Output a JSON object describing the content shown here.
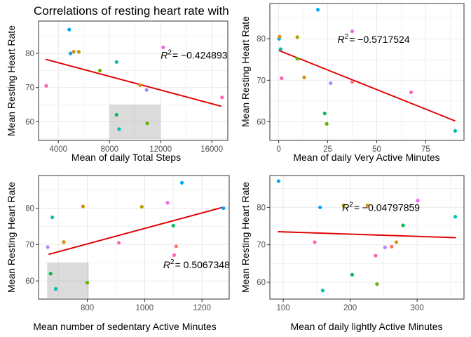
{
  "title": "Correlations of resting heart rate with",
  "colors": {
    "trend": "#e00000",
    "band": "#999999",
    "grid": "#ebebeb",
    "border": "#333333",
    "point_palette": [
      "#F8766D",
      "#DB8E00",
      "#AEA200",
      "#64B200",
      "#00BD5C",
      "#00C1A7",
      "#00BADE",
      "#00A6FF",
      "#B385FF",
      "#EF67EB",
      "#FF63B6"
    ]
  },
  "chart_data": [
    {
      "type": "scatter",
      "title": "Correlations of resting heart rate with",
      "xlabel": "Mean of daily Total Steps",
      "ylabel": "Mean Resting Heart Rate",
      "xlim": [
        2450,
        17250
      ],
      "ylim": [
        54.5,
        89.5
      ],
      "xticks": [
        4000,
        8000,
        12000,
        16000
      ],
      "yticks": [
        60,
        70,
        80
      ],
      "xtick_labels": [
        "4000",
        "8000",
        "12000",
        "16000"
      ],
      "ytick_labels": [
        "60",
        "70",
        "80"
      ],
      "grid": true,
      "annotation": {
        "prefix": "R",
        "exponent": "2",
        "value": "= −0.424893",
        "x": 12000,
        "y": 78.5
      },
      "trend": {
        "x1": 3000,
        "y1": 78.3,
        "x2": 16750,
        "y2": 64.5
      },
      "band": {
        "x1": 8000,
        "x2": 12000,
        "y1": 54.9,
        "y2": 65
      },
      "points": [
        {
          "x": 3050,
          "y": 70.5,
          "color": "#FF63B6"
        },
        {
          "x": 4850,
          "y": 87.0,
          "color": "#00A6FF"
        },
        {
          "x": 4950,
          "y": 80.0,
          "color": "#00A6FF"
        },
        {
          "x": 5200,
          "y": 80.5,
          "color": "#DB8E00"
        },
        {
          "x": 5600,
          "y": 80.5,
          "color": "#AEA200"
        },
        {
          "x": 7250,
          "y": 75.0,
          "color": "#64B200"
        },
        {
          "x": 8550,
          "y": 77.5,
          "color": "#00C1A7"
        },
        {
          "x": 8550,
          "y": 62.0,
          "color": "#00BD5C"
        },
        {
          "x": 8750,
          "y": 57.8,
          "color": "#00C1A7"
        },
        {
          "x": 10400,
          "y": 70.7,
          "color": "#DB8E00"
        },
        {
          "x": 10900,
          "y": 69.3,
          "color": "#B385FF"
        },
        {
          "x": 10950,
          "y": 59.5,
          "color": "#64B200"
        },
        {
          "x": 12200,
          "y": 81.8,
          "color": "#EF67EB"
        },
        {
          "x": 16800,
          "y": 67.1,
          "color": "#FF63B6"
        }
      ]
    },
    {
      "type": "scatter",
      "title": "",
      "xlabel": "Mean of daily Very Active Minutes",
      "ylabel": "Mean Resting Heart Rate",
      "xlim": [
        -4.5,
        94.5
      ],
      "ylim": [
        55.5,
        88.5
      ],
      "xticks": [
        0,
        25,
        50,
        75
      ],
      "yticks": [
        60,
        70,
        80
      ],
      "xtick_labels": [
        "0",
        "25",
        "50",
        "75"
      ],
      "ytick_labels": [
        "60",
        "70",
        "80"
      ],
      "grid": true,
      "annotation": {
        "prefix": "R",
        "exponent": "2",
        "value": "= −0.5717524",
        "x": 30,
        "y": 79
      },
      "trend": {
        "x1": 0,
        "y1": 77.2,
        "x2": 90,
        "y2": 60.2
      },
      "points": [
        {
          "x": 0.2,
          "y": 80.0,
          "color": "#00A6FF"
        },
        {
          "x": 0.5,
          "y": 80.5,
          "color": "#DB8E00"
        },
        {
          "x": 1.0,
          "y": 77.5,
          "color": "#00C1A7"
        },
        {
          "x": 1.5,
          "y": 70.5,
          "color": "#FF63B6"
        },
        {
          "x": 9.5,
          "y": 80.4,
          "color": "#AEA200"
        },
        {
          "x": 9.5,
          "y": 75.2,
          "color": "#64B200"
        },
        {
          "x": 13.0,
          "y": 70.7,
          "color": "#DB8E00"
        },
        {
          "x": 20.0,
          "y": 87.0,
          "color": "#00A6FF"
        },
        {
          "x": 23.5,
          "y": 62.0,
          "color": "#00BD5C"
        },
        {
          "x": 24.5,
          "y": 59.5,
          "color": "#64B200"
        },
        {
          "x": 26.5,
          "y": 69.3,
          "color": "#B385FF"
        },
        {
          "x": 37.5,
          "y": 81.8,
          "color": "#EF67EB"
        },
        {
          "x": 37.5,
          "y": 69.6,
          "color": "#F8766D"
        },
        {
          "x": 67.5,
          "y": 67.1,
          "color": "#FF63B6"
        },
        {
          "x": 90.0,
          "y": 57.8,
          "color": "#00C1A7"
        }
      ]
    },
    {
      "type": "scatter",
      "title": "",
      "xlabel": "Mean number of sedentary Active Minutes",
      "ylabel": "Mean Resting Heart Rate",
      "xlim": [
        630,
        1295
      ],
      "ylim": [
        55,
        89
      ],
      "xticks": [
        800,
        1000,
        1200
      ],
      "yticks": [
        60,
        70,
        80
      ],
      "xtick_labels": [
        "800",
        "1000",
        "1200"
      ],
      "ytick_labels": [
        "60",
        "70",
        "80"
      ],
      "grid": true,
      "annotation": {
        "prefix": "R",
        "exponent": "2",
        "value": "= 0.5067348",
        "x": 1065,
        "y": 63.5
      },
      "trend": {
        "x1": 665,
        "y1": 67.3,
        "x2": 1270,
        "y2": 80.2
      },
      "band": {
        "x1": 660,
        "x2": 805,
        "y1": 55.3,
        "y2": 65
      },
      "points": [
        {
          "x": 662,
          "y": 69.3,
          "color": "#B385FF"
        },
        {
          "x": 672,
          "y": 62.0,
          "color": "#00BD5C"
        },
        {
          "x": 678,
          "y": 77.5,
          "color": "#00C1A7"
        },
        {
          "x": 690,
          "y": 57.8,
          "color": "#00C1A7"
        },
        {
          "x": 718,
          "y": 70.7,
          "color": "#DB8E00"
        },
        {
          "x": 785,
          "y": 80.5,
          "color": "#DB8E00"
        },
        {
          "x": 800,
          "y": 59.5,
          "color": "#64B200"
        },
        {
          "x": 910,
          "y": 70.5,
          "color": "#FF63B6"
        },
        {
          "x": 990,
          "y": 80.4,
          "color": "#AEA200"
        },
        {
          "x": 1080,
          "y": 81.5,
          "color": "#EF67EB"
        },
        {
          "x": 1100,
          "y": 75.2,
          "color": "#00BD5C"
        },
        {
          "x": 1103,
          "y": 67.1,
          "color": "#FF63B6"
        },
        {
          "x": 1110,
          "y": 69.5,
          "color": "#F8766D"
        },
        {
          "x": 1130,
          "y": 87.0,
          "color": "#00A6FF"
        },
        {
          "x": 1275,
          "y": 80.0,
          "color": "#00A6FF"
        }
      ]
    },
    {
      "type": "scatter",
      "title": "",
      "xlabel": "Mean of daily lightly Active Minutes",
      "ylabel": "Mean Resting Heart Rate",
      "xlim": [
        80,
        370
      ],
      "ylim": [
        55.5,
        88.5
      ],
      "xticks": [
        100,
        200,
        300
      ],
      "yticks": [
        60,
        70,
        80
      ],
      "xtick_labels": [
        "100",
        "200",
        "300"
      ],
      "ytick_labels": [
        "60",
        "70",
        "80"
      ],
      "grid": true,
      "annotation": {
        "prefix": "R",
        "exponent": "2",
        "value": "= −0.04797859",
        "x": 188,
        "y": 79
      },
      "trend": {
        "x1": 92,
        "y1": 73.5,
        "x2": 358,
        "y2": 71.9
      },
      "points": [
        {
          "x": 93,
          "y": 87.0,
          "color": "#00A6FF"
        },
        {
          "x": 147,
          "y": 70.7,
          "color": "#FF63B6"
        },
        {
          "x": 155,
          "y": 80.0,
          "color": "#00A6FF"
        },
        {
          "x": 159,
          "y": 57.8,
          "color": "#00C1A7"
        },
        {
          "x": 190,
          "y": 80.5,
          "color": "#AEA200"
        },
        {
          "x": 203,
          "y": 62.0,
          "color": "#00BD5C"
        },
        {
          "x": 226,
          "y": 80.5,
          "color": "#DB8E00"
        },
        {
          "x": 238,
          "y": 67.1,
          "color": "#FF63B6"
        },
        {
          "x": 240,
          "y": 59.5,
          "color": "#64B200"
        },
        {
          "x": 252,
          "y": 69.3,
          "color": "#B385FF"
        },
        {
          "x": 262,
          "y": 69.5,
          "color": "#F8766D"
        },
        {
          "x": 269,
          "y": 70.7,
          "color": "#DB8E00"
        },
        {
          "x": 279,
          "y": 75.2,
          "color": "#00BD5C"
        },
        {
          "x": 301,
          "y": 81.8,
          "color": "#EF67EB"
        },
        {
          "x": 357,
          "y": 77.5,
          "color": "#00C1A7"
        }
      ]
    }
  ]
}
